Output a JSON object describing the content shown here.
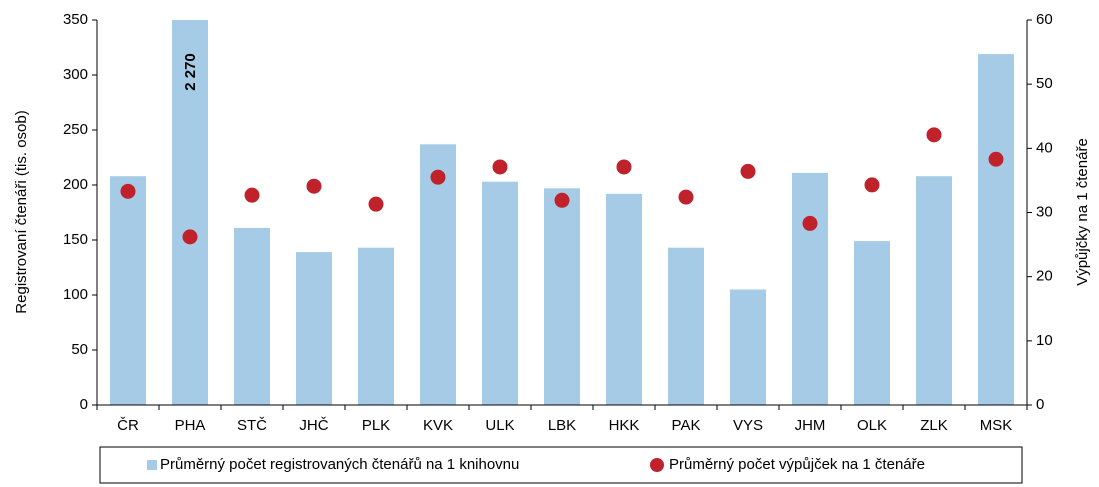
{
  "chart_data": {
    "type": "bar",
    "categories": [
      "ČR",
      "PHA",
      "STČ",
      "JHČ",
      "PLK",
      "KVK",
      "ULK",
      "LBK",
      "HKK",
      "PAK",
      "VYS",
      "JHM",
      "OLK",
      "ZLK",
      "MSK"
    ],
    "series": [
      {
        "name": "Průměrný počet registrovaných čtenářů na 1 knihovnu",
        "type": "bar",
        "color": "#a6cbe6",
        "values": [
          208,
          2270,
          161,
          139,
          143,
          237,
          203,
          197,
          192,
          143,
          105,
          211,
          149,
          208,
          319
        ],
        "value_labels": [
          null,
          "2 270",
          null,
          null,
          null,
          null,
          null,
          null,
          null,
          null,
          null,
          null,
          null,
          null,
          null
        ]
      },
      {
        "name": "Průměrný počet výpůjček na 1 čtenáře",
        "type": "scatter",
        "color": "#c0222b",
        "axis": "y2",
        "values": [
          33.3,
          26.2,
          32.7,
          34.1,
          31.3,
          35.5,
          37.1,
          31.9,
          37.1,
          32.4,
          36.4,
          28.3,
          34.3,
          42.1,
          38.3
        ]
      }
    ],
    "ylabel": "Registrovaní čtenáři (tis. osob)",
    "y2label": "Výpůjčky na 1 čtenáře",
    "ylim": [
      0,
      350
    ],
    "yticks": [
      0,
      50,
      100,
      150,
      200,
      250,
      300,
      350
    ],
    "y2lim": [
      0,
      60
    ],
    "y2ticks": [
      0,
      10,
      20,
      30,
      40,
      50,
      60
    ],
    "legend": "bottom"
  }
}
